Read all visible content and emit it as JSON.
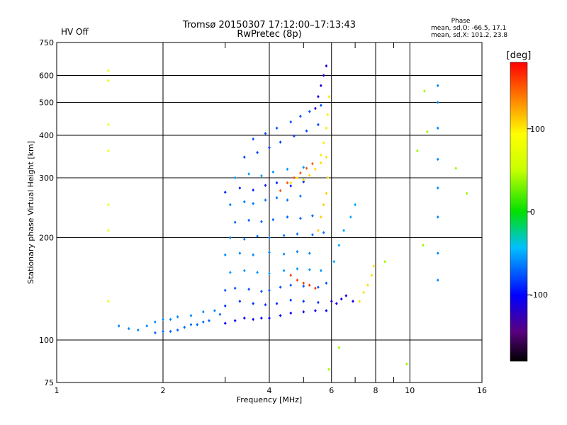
{
  "chart_data": {
    "type": "scatter",
    "title": "Tromsø 20150307 17:12:00–17:13:43",
    "subtitle": "RwPretec (8p)",
    "status": "HV Off",
    "status_color": "#d40000",
    "phase_title": "Phase",
    "phase_line1": "mean, sd,O: -66.5, 17.1",
    "phase_line2": "mean, sd,X: 101.2, 23.8",
    "xlabel": "Frequency [MHz]",
    "ylabel": "Stationary phase Virtual Height [km]",
    "xscale": "log",
    "yscale": "log",
    "xlim": [
      1,
      16
    ],
    "ylim": [
      75,
      750
    ],
    "xticks": [
      1,
      2,
      4,
      6,
      8,
      10,
      16
    ],
    "xtick_labels": [
      "1",
      "2",
      "4",
      "6",
      "8",
      "10",
      "16"
    ],
    "xminor": [
      3,
      5,
      7,
      9
    ],
    "yticks": [
      75,
      100,
      200,
      300,
      400,
      500,
      600,
      750
    ],
    "ytick_labels": [
      "75",
      "100",
      "200",
      "300",
      "400",
      "500",
      "600",
      "750"
    ],
    "grid": true,
    "colorbar": {
      "label": "[deg]",
      "min": -180,
      "max": 180,
      "ticks": [
        100,
        0,
        -100
      ],
      "tick_labels": [
        "100",
        "0",
        "-100"
      ]
    },
    "series": [
      {
        "x": [
          1.5,
          1.6,
          1.7,
          1.8,
          1.9,
          2.0,
          2.1,
          2.2,
          2.4,
          2.6,
          2.8
        ],
        "y": [
          110,
          108,
          107,
          110,
          113,
          115,
          115,
          117,
          118,
          121,
          122
        ],
        "phase": -60
      },
      {
        "x": [
          1.9,
          2.0,
          2.1,
          2.2,
          2.3,
          2.4,
          2.5,
          2.6,
          2.7,
          2.9
        ],
        "y": [
          105,
          106,
          106,
          107,
          109,
          111,
          111,
          113,
          114,
          119
        ],
        "phase": -70
      },
      {
        "x": [
          3.0,
          3.2,
          3.4,
          3.6,
          3.8,
          4.0,
          4.3,
          4.6,
          5.0,
          5.4,
          5.8
        ],
        "y": [
          112,
          114,
          116,
          115,
          116,
          116,
          118,
          120,
          121,
          122,
          122
        ],
        "phase": -100
      },
      {
        "x": [
          3.0,
          3.3,
          3.6,
          3.9,
          4.2,
          4.6,
          5.0,
          5.5
        ],
        "y": [
          126,
          130,
          128,
          127,
          128,
          131,
          130,
          129
        ],
        "phase": -85
      },
      {
        "x": [
          3.0,
          3.2,
          3.5,
          3.8,
          4.0,
          4.3,
          4.6,
          5.0,
          5.5,
          5.8
        ],
        "y": [
          140,
          142,
          141,
          139,
          140,
          143,
          145,
          144,
          143,
          147
        ],
        "phase": -75
      },
      {
        "x": [
          3.1,
          3.4,
          3.7,
          4.0,
          4.4,
          4.8,
          5.2,
          5.6
        ],
        "y": [
          158,
          160,
          158,
          157,
          160,
          162,
          161,
          160
        ],
        "phase": -55
      },
      {
        "x": [
          3.0,
          3.3,
          3.6,
          4.0,
          4.4,
          4.8,
          5.2
        ],
        "y": [
          178,
          180,
          178,
          181,
          179,
          182,
          180
        ],
        "phase": -60
      },
      {
        "x": [
          3.1,
          3.4,
          3.7,
          4.0,
          4.4,
          4.8,
          5.3,
          5.7
        ],
        "y": [
          200,
          198,
          202,
          200,
          203,
          205,
          204,
          207
        ],
        "phase": -65
      },
      {
        "x": [
          3.2,
          3.5,
          3.8,
          4.1,
          4.5,
          4.9,
          5.3
        ],
        "y": [
          222,
          225,
          223,
          226,
          230,
          228,
          232
        ],
        "phase": -70
      },
      {
        "x": [
          3.1,
          3.4,
          3.6,
          3.9,
          4.2,
          4.5,
          4.9
        ],
        "y": [
          250,
          255,
          252,
          258,
          262,
          258,
          265
        ],
        "phase": -65
      },
      {
        "x": [
          3.0,
          3.3,
          3.6,
          3.9,
          4.2,
          4.6,
          5.0
        ],
        "y": [
          272,
          280,
          276,
          285,
          290,
          284,
          292
        ],
        "phase": -90
      },
      {
        "x": [
          3.2,
          3.5,
          3.8,
          4.1,
          4.5,
          5.0
        ],
        "y": [
          300,
          308,
          304,
          312,
          318,
          322
        ],
        "phase": -55
      },
      {
        "x": [
          3.4,
          3.7,
          4.0,
          4.3,
          4.7,
          5.1,
          5.5
        ],
        "y": [
          345,
          356,
          368,
          382,
          398,
          412,
          430
        ],
        "phase": -80
      },
      {
        "x": [
          3.6,
          3.9,
          4.2,
          4.6,
          4.9,
          5.2,
          5.6
        ],
        "y": [
          390,
          405,
          420,
          438,
          455,
          470,
          490
        ],
        "phase": -75
      },
      {
        "x": [
          4.3,
          4.5,
          4.7,
          4.9,
          5.1,
          5.3
        ],
        "y": [
          275,
          290,
          300,
          310,
          320,
          330
        ],
        "phase": 150
      },
      {
        "x": [
          4.6,
          4.8,
          5.0,
          5.2,
          5.4,
          5.6,
          5.8
        ],
        "y": [
          290,
          300,
          296,
          305,
          318,
          332,
          345
        ],
        "phase": 105
      },
      {
        "x": [
          5.5,
          5.6,
          5.7,
          5.8,
          5.85
        ],
        "y": [
          210,
          230,
          250,
          270,
          300
        ],
        "phase": 110
      },
      {
        "x": [
          5.6,
          5.7,
          5.8,
          5.85,
          5.9
        ],
        "y": [
          350,
          380,
          420,
          460,
          520
        ],
        "phase": 100
      },
      {
        "x": [
          5.4,
          5.5,
          5.6,
          5.7,
          5.8
        ],
        "y": [
          480,
          520,
          560,
          600,
          640
        ],
        "phase": -110
      },
      {
        "x": [
          4.6,
          4.8,
          5.0,
          5.2,
          5.4
        ],
        "y": [
          155,
          150,
          147,
          145,
          142
        ],
        "phase": 160
      },
      {
        "x": [
          6.0,
          6.2,
          6.4,
          6.6,
          6.9
        ],
        "y": [
          130,
          128,
          132,
          135,
          130
        ],
        "phase": -110
      },
      {
        "x": [
          7.2,
          7.4,
          7.6,
          7.8,
          7.9
        ],
        "y": [
          130,
          138,
          145,
          155,
          165
        ],
        "phase": 105
      },
      {
        "x": [
          6.1,
          6.3,
          6.5,
          6.8,
          7.0
        ],
        "y": [
          170,
          190,
          210,
          230,
          250
        ],
        "phase": -50
      },
      {
        "x": [
          1.4,
          1.4,
          1.4,
          1.4,
          1.4,
          1.4,
          1.4
        ],
        "y": [
          620,
          580,
          430,
          360,
          250,
          210,
          130
        ],
        "phase": 80
      },
      {
        "x": [
          12.0,
          12.0,
          12.0,
          12.0,
          12.0,
          12.0,
          12.0,
          12.0
        ],
        "y": [
          560,
          500,
          420,
          340,
          280,
          230,
          180,
          150
        ],
        "phase": -60
      },
      {
        "x": [
          11.0,
          11.2,
          10.5,
          10.9,
          13.5,
          14.5,
          8.5,
          9.8,
          6.3,
          5.9
        ],
        "y": [
          540,
          410,
          360,
          190,
          320,
          270,
          170,
          85,
          95,
          82
        ],
        "phase": 40
      }
    ]
  }
}
